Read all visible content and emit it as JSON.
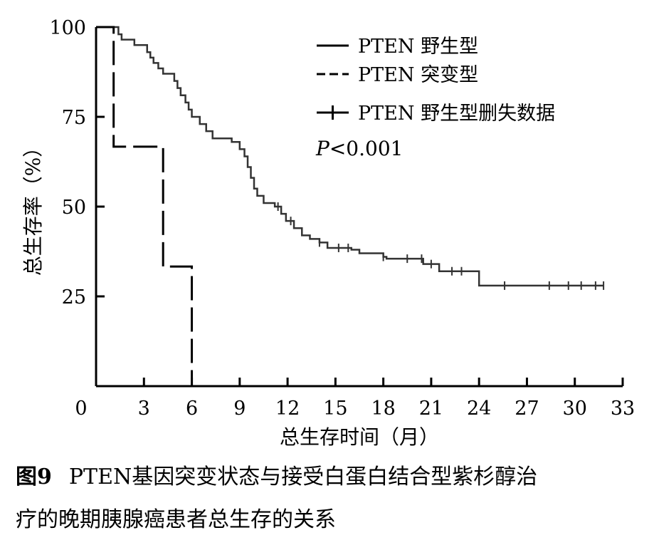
{
  "chart_data": {
    "type": "line",
    "subtype": "kaplan-meier",
    "xlabel": "总生存时间（月）",
    "ylabel": "总生存率（%）",
    "xlim": [
      0,
      33
    ],
    "ylim": [
      0,
      100
    ],
    "x_ticks": [
      0,
      3,
      6,
      9,
      12,
      15,
      18,
      21,
      24,
      27,
      30,
      33
    ],
    "y_ticks": [
      25,
      50,
      75,
      100
    ],
    "grid": false,
    "legend_position": "top-right",
    "annotation": {
      "p_label": "P",
      "p_text": "<0.001"
    },
    "series": [
      {
        "name": "PTEN 野生型",
        "style": "solid",
        "color": "#000000",
        "points": [
          [
            0,
            100
          ],
          [
            1.2,
            100
          ],
          [
            1.4,
            98
          ],
          [
            1.6,
            96.5
          ],
          [
            2.4,
            95
          ],
          [
            3.2,
            93
          ],
          [
            3.4,
            91.5
          ],
          [
            3.6,
            90
          ],
          [
            3.9,
            88.5
          ],
          [
            4.2,
            87
          ],
          [
            4.9,
            85
          ],
          [
            5.1,
            83
          ],
          [
            5.3,
            81
          ],
          [
            5.6,
            79
          ],
          [
            5.8,
            77
          ],
          [
            6.0,
            75
          ],
          [
            6.5,
            73
          ],
          [
            6.9,
            71
          ],
          [
            7.3,
            69
          ],
          [
            8.5,
            68
          ],
          [
            9.0,
            66
          ],
          [
            9.3,
            64
          ],
          [
            9.5,
            61
          ],
          [
            9.7,
            58
          ],
          [
            9.9,
            55
          ],
          [
            10.1,
            53
          ],
          [
            10.5,
            51
          ],
          [
            11.2,
            50
          ],
          [
            11.6,
            48
          ],
          [
            11.9,
            46
          ],
          [
            12.4,
            44
          ],
          [
            12.9,
            42
          ],
          [
            13.4,
            41
          ],
          [
            14,
            40
          ],
          [
            14.5,
            38.5
          ],
          [
            16.0,
            38
          ],
          [
            16.5,
            37
          ],
          [
            18.0,
            36
          ],
          [
            18.2,
            35.5
          ],
          [
            20.5,
            34
          ],
          [
            21.5,
            32
          ],
          [
            24.0,
            28
          ],
          [
            31.8,
            28
          ]
        ],
        "censored": [
          11.4,
          12.2,
          14.0,
          15.2,
          15.8,
          18.0,
          19.5,
          20.4,
          21.0,
          22.3,
          22.9,
          25.6,
          28.4,
          29.6,
          30.4,
          31.3,
          31.8
        ]
      },
      {
        "name": "PTEN 突变型",
        "style": "dashed",
        "color": "#000000",
        "points": [
          [
            0,
            100
          ],
          [
            1.1,
            100
          ],
          [
            1.1,
            66.7
          ],
          [
            4.2,
            66.7
          ],
          [
            4.2,
            33.3
          ],
          [
            6.0,
            33.3
          ],
          [
            6.0,
            0
          ]
        ]
      },
      {
        "name": "PTEN 野生型删失数据",
        "style": "censor-marker",
        "color": "#000000",
        "points": []
      }
    ]
  },
  "caption": {
    "label": "图9",
    "text": "PTEN基因突变状态与接受白蛋白结合型紫杉醇治疗的晚期胰腺癌患者总生存的关系"
  }
}
